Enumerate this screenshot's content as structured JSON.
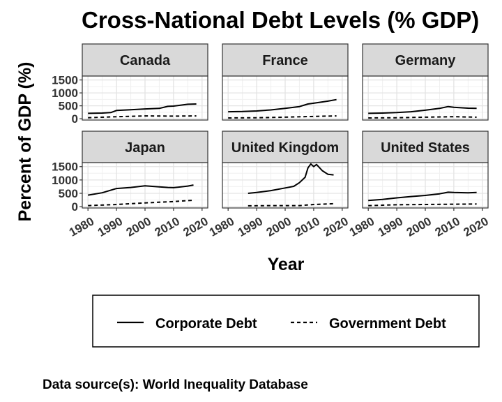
{
  "chart_data": {
    "type": "line",
    "title": "Cross-National Debt Levels (% GDP)",
    "xlabel": "Year",
    "ylabel": "Percent of GDP (%)",
    "caption": "Data source(s): World Inequality Database",
    "xlim": [
      1978,
      2022
    ],
    "ylim": [
      -50,
      1650
    ],
    "x_ticks": [
      "1980",
      "1990",
      "2000",
      "2010",
      "2020"
    ],
    "x_tick_values": [
      1980,
      1990,
      2000,
      2010,
      2020
    ],
    "y_ticks": [
      "0",
      "500",
      "1000",
      "1500"
    ],
    "y_tick_values": [
      0,
      500,
      1000,
      1500
    ],
    "grid": true,
    "legend": {
      "position": "bottom",
      "entries": [
        "Corporate Debt",
        "Government Debt"
      ]
    },
    "panels": [
      {
        "name": "Canada",
        "series": [
          {
            "name": "Corporate Debt",
            "x": [
              1980,
              1985,
              1988,
              1990,
              1995,
              2000,
              2005,
              2008,
              2010,
              2015,
              2018
            ],
            "values": [
              210,
              220,
              240,
              320,
              350,
              380,
              400,
              480,
              490,
              560,
              570
            ]
          },
          {
            "name": "Government Debt",
            "x": [
              1980,
              1990,
              2000,
              2010,
              2018
            ],
            "values": [
              40,
              80,
              110,
              100,
              110
            ]
          }
        ]
      },
      {
        "name": "France",
        "series": [
          {
            "name": "Corporate Debt",
            "x": [
              1980,
              1985,
              1990,
              1995,
              2000,
              2005,
              2008,
              2010,
              2015,
              2018
            ],
            "values": [
              270,
              280,
              300,
              340,
              400,
              470,
              570,
              600,
              680,
              740
            ]
          },
          {
            "name": "Government Debt",
            "x": [
              1980,
              1990,
              2000,
              2010,
              2018
            ],
            "values": [
              30,
              40,
              60,
              90,
              110
            ]
          }
        ]
      },
      {
        "name": "Germany",
        "series": [
          {
            "name": "Corporate Debt",
            "x": [
              1980,
              1985,
              1990,
              1995,
              2000,
              2005,
              2008,
              2010,
              2015,
              2018
            ],
            "values": [
              210,
              220,
              240,
              270,
              330,
              400,
              470,
              440,
              410,
              400
            ]
          },
          {
            "name": "Government Debt",
            "x": [
              1980,
              1990,
              2000,
              2010,
              2018
            ],
            "values": [
              30,
              40,
              60,
              80,
              60
            ]
          }
        ]
      },
      {
        "name": "Japan",
        "series": [
          {
            "name": "Corporate Debt",
            "x": [
              1980,
              1985,
              1990,
              1995,
              2000,
              2005,
              2008,
              2010,
              2015,
              2017
            ],
            "values": [
              430,
              520,
              680,
              720,
              780,
              740,
              720,
              710,
              770,
              810
            ]
          },
          {
            "name": "Government Debt",
            "x": [
              1980,
              1990,
              2000,
              2010,
              2017
            ],
            "values": [
              40,
              80,
              140,
              190,
              240
            ]
          }
        ]
      },
      {
        "name": "United Kingdom",
        "series": [
          {
            "name": "Corporate Debt",
            "x": [
              1987,
              1990,
              1995,
              2000,
              2003,
              2005,
              2007,
              2008,
              2009,
              2010,
              2011,
              2013,
              2015,
              2017
            ],
            "values": [
              500,
              530,
              600,
              700,
              760,
              900,
              1100,
              1450,
              1600,
              1500,
              1580,
              1350,
              1210,
              1190
            ]
          },
          {
            "name": "Government Debt",
            "x": [
              1987,
              1995,
              2000,
              2005,
              2010,
              2017
            ],
            "values": [
              30,
              40,
              40,
              40,
              80,
              110
            ]
          }
        ]
      },
      {
        "name": "United States",
        "series": [
          {
            "name": "Corporate Debt",
            "x": [
              1980,
              1985,
              1990,
              1995,
              2000,
              2005,
              2008,
              2010,
              2015,
              2018
            ],
            "values": [
              230,
              270,
              330,
              380,
              420,
              480,
              540,
              530,
              520,
              530
            ]
          },
          {
            "name": "Government Debt",
            "x": [
              1980,
              1990,
              2000,
              2010,
              2018
            ],
            "values": [
              40,
              70,
              80,
              90,
              100
            ]
          }
        ]
      }
    ]
  }
}
